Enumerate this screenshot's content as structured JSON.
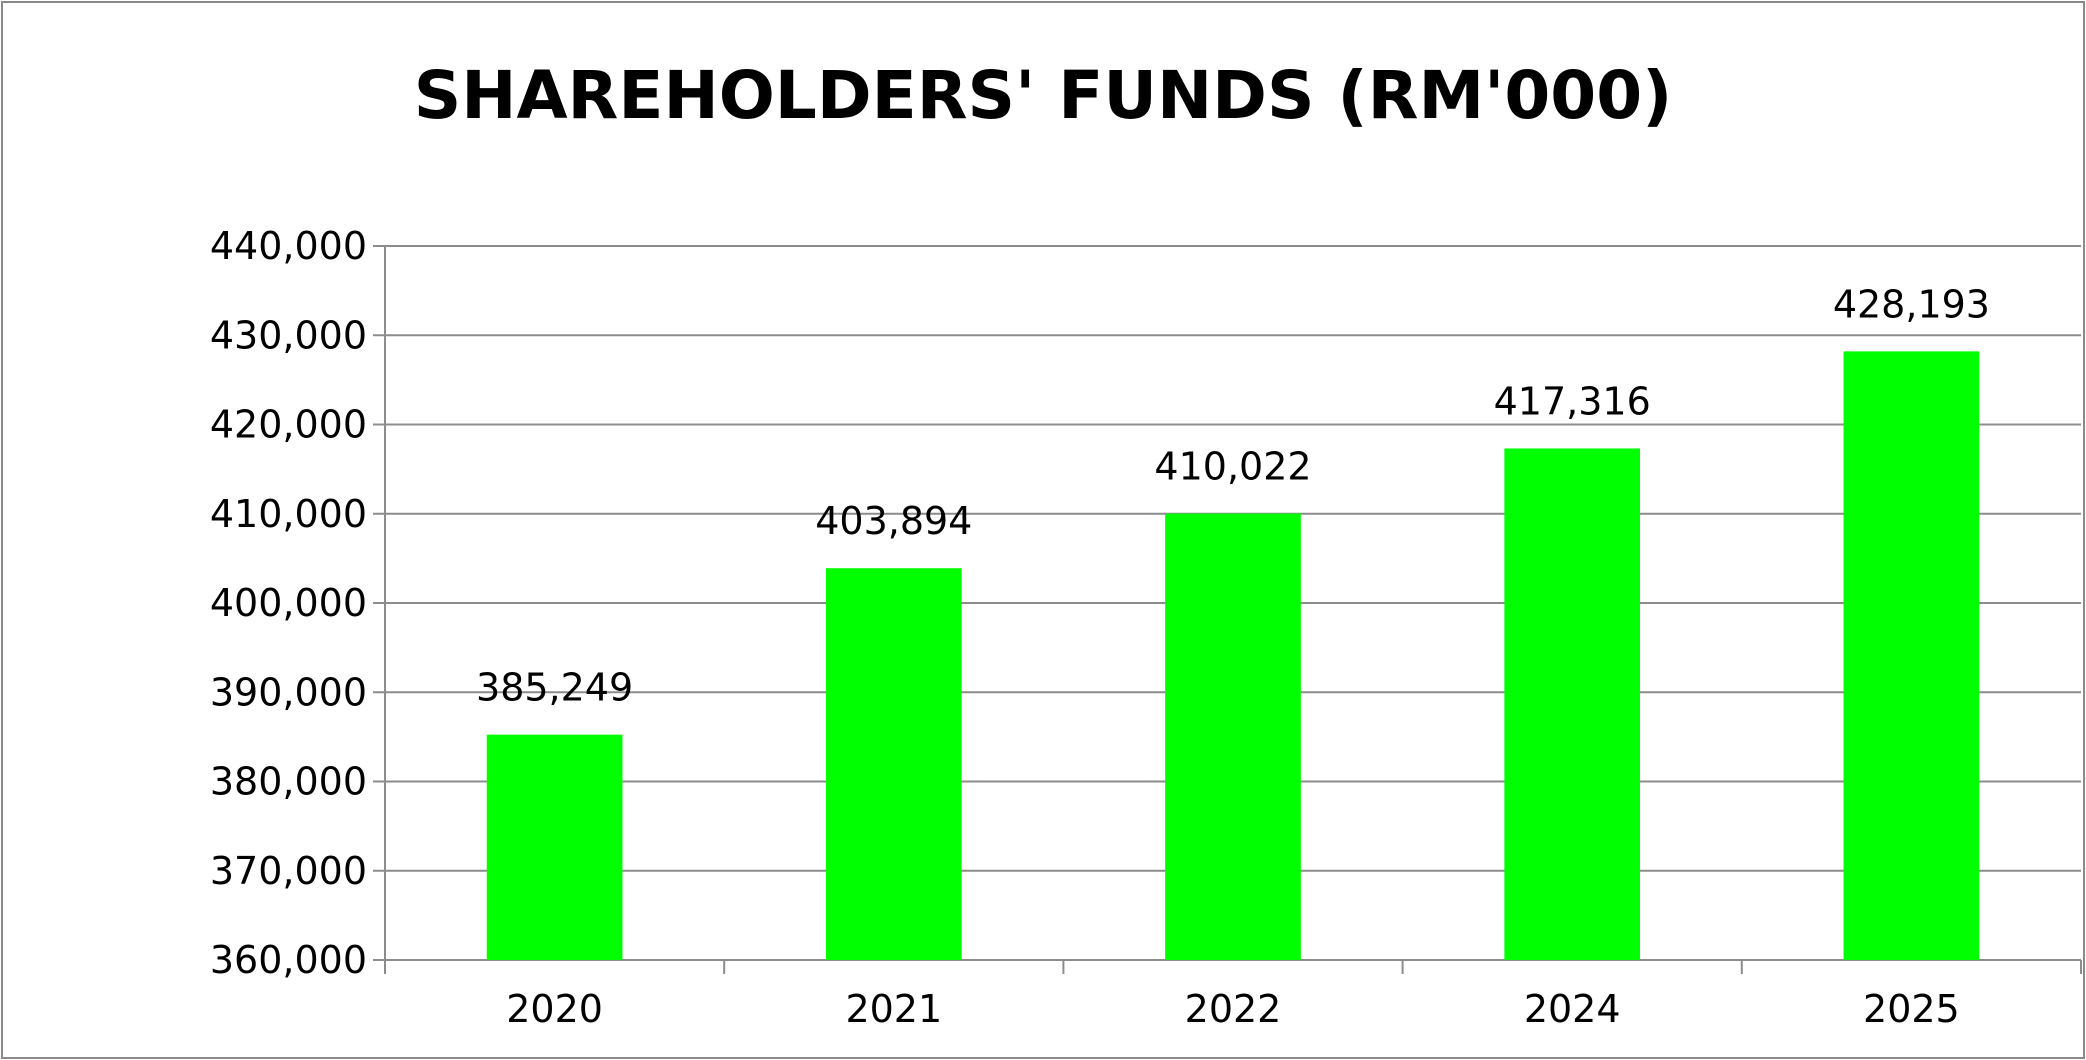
{
  "chart_data": {
    "type": "bar",
    "title": "SHAREHOLDERS' FUNDS (RM'000)",
    "xlabel": "",
    "ylabel": "",
    "categories": [
      "2020",
      "2021",
      "2022",
      "2024",
      "2025"
    ],
    "values": [
      385249,
      403894,
      410022,
      417316,
      428193
    ],
    "data_labels": [
      "385,249",
      "403,894",
      "410,022",
      "417,316",
      "428,193"
    ],
    "ylim": [
      360000,
      440000
    ],
    "yticks": [
      360000,
      370000,
      380000,
      390000,
      400000,
      410000,
      420000,
      430000,
      440000
    ],
    "ytick_labels": [
      "360,000",
      "370,000",
      "380,000",
      "390,000",
      "400,000",
      "410,000",
      "420,000",
      "430,000",
      "440,000"
    ],
    "grid": true,
    "legend": "none",
    "bar_color": "#00ff00",
    "grid_color": "#8c8c8c"
  }
}
